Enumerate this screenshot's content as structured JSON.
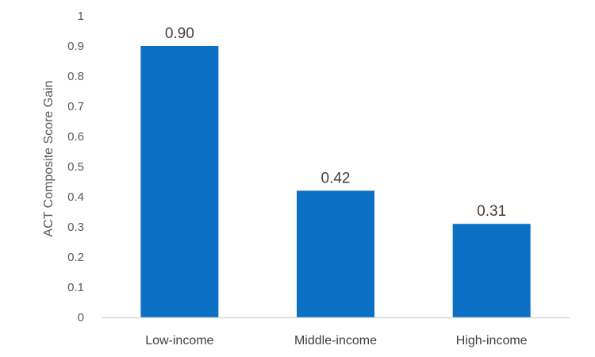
{
  "chart_data": {
    "type": "bar",
    "title": "",
    "xlabel": "",
    "ylabel": "ACT Composite Score Gain",
    "categories": [
      "Low-income",
      "Middle-income",
      "High-income"
    ],
    "values": [
      0.9,
      0.42,
      0.31
    ],
    "data_labels": [
      "0.90",
      "0.42",
      "0.31"
    ],
    "ylim": [
      0,
      1
    ],
    "yticks": [
      "0",
      "0.1",
      "0.2",
      "0.3",
      "0.4",
      "0.5",
      "0.6",
      "0.7",
      "0.8",
      "0.9",
      "1"
    ],
    "grid": false,
    "legend": "none",
    "bar_color": "#0B6FC4",
    "axis_color": "#D9D9D9"
  }
}
